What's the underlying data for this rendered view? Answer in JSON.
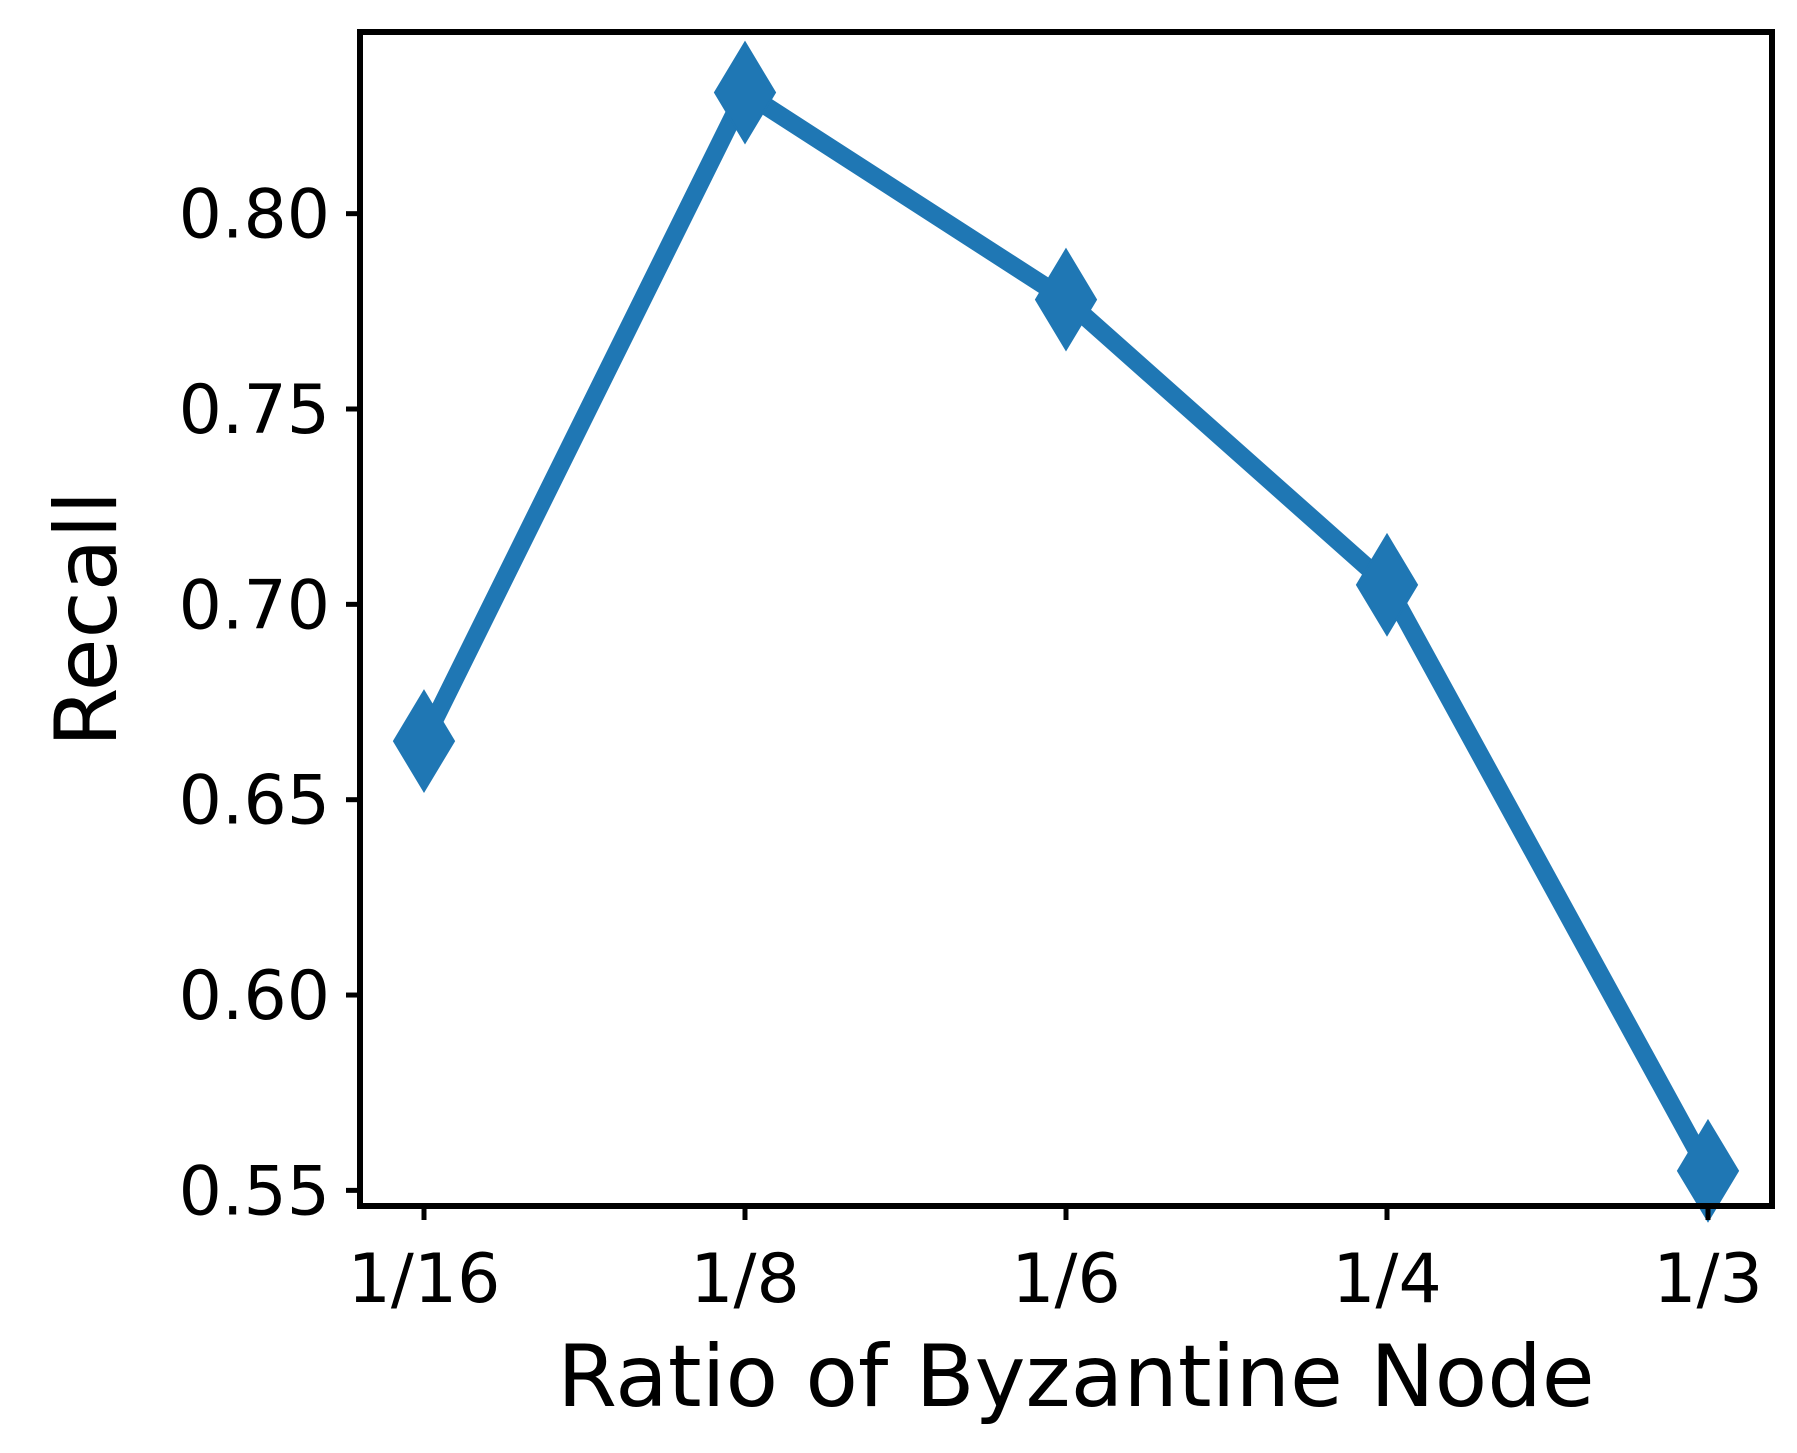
{
  "chart_data": {
    "type": "line",
    "title": "",
    "xlabel": "Ratio of Byzantine Node",
    "ylabel": "Recall",
    "categories": [
      "1/16",
      "1/8",
      "1/6",
      "1/4",
      "1/3"
    ],
    "series": [
      {
        "values": [
          0.665,
          0.831,
          0.778,
          0.705,
          0.555
        ],
        "color": "#1f77b4",
        "marker": "thin-diamond"
      }
    ],
    "yticks": [
      0.55,
      0.6,
      0.65,
      0.7,
      0.75,
      0.8
    ],
    "ytick_labels": [
      "0.55",
      "0.60",
      "0.65",
      "0.70",
      "0.75",
      "0.80"
    ],
    "ylim": [
      0.546,
      0.8465
    ],
    "grid": false,
    "legend": "none"
  }
}
